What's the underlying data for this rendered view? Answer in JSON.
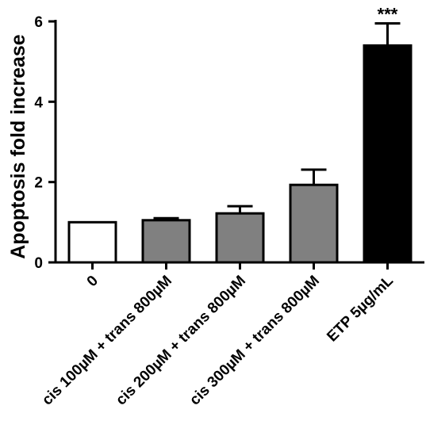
{
  "chart_data": {
    "type": "bar",
    "categories": [
      "0",
      "cis 100µM + trans 800µM",
      "cis 200µM + trans 800µM",
      "cis 300µM + trans 800µM",
      "ETP 5µg/mL"
    ],
    "values": [
      1.0,
      1.05,
      1.22,
      1.93,
      5.4
    ],
    "error": [
      0.0,
      0.05,
      0.18,
      0.38,
      0.55
    ],
    "significance": [
      "",
      "",
      "",
      "",
      "***"
    ],
    "fill_colors": [
      "#ffffff",
      "#808080",
      "#808080",
      "#808080",
      "#000000"
    ],
    "title": "",
    "xlabel": "",
    "ylabel": "Apoptosis fold increase",
    "ylim": [
      0,
      6
    ],
    "yticks": [
      "0",
      "2",
      "4",
      "6"
    ],
    "grid": false
  }
}
